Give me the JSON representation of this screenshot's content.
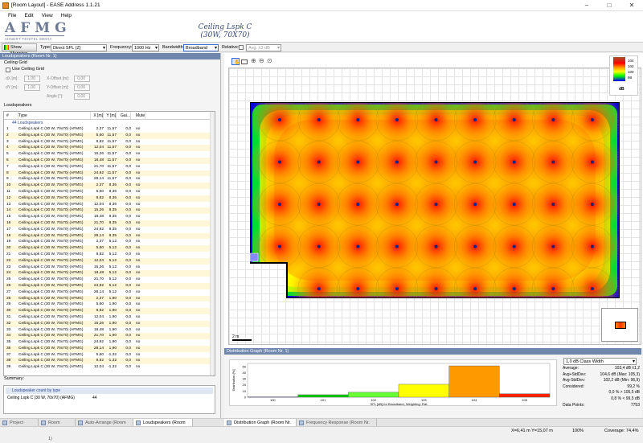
{
  "window": {
    "title": "[Room Layout] - EASE Address 1.1.21"
  },
  "menu": [
    "File",
    "Edit",
    "View",
    "Help"
  ],
  "logo": {
    "text": "AFMG",
    "subtitle": "AHNERT FEISTEL MEDIA GROUP"
  },
  "design": {
    "line1": "Ceiling Lspk C",
    "line2": "(30W, 70X70)"
  },
  "toolbar": {
    "show_mapping": "Show Mapping",
    "type_label": "Type:",
    "type_value": "Direct SPL (Z)",
    "frequency_label": "Frequency:",
    "frequency_value": "1000 Hz",
    "bandwidth_label": "Bandwidth:",
    "bandwidth_value": "Broadband",
    "relative_label": "Relative:",
    "relative_value": "Avg. ±3 dB"
  },
  "left_panel": {
    "title": "Loudspeakers (Room Nr. 1)",
    "ceiling_grid_header": "Ceiling Grid",
    "use_ceiling_grid": "Use Ceiling Grid",
    "dx_label": "dX [m]:",
    "dx_value": "1,00",
    "dy_label": "dY [m]:",
    "dy_value": "1,00",
    "xoff_label": "X-Offset [m]:",
    "xoff_value": "0,00",
    "yoff_label": "Y-Offset [m]:",
    "yoff_value": "0,00",
    "angle_label": "Angle [°]:",
    "angle_value": "0,00",
    "loudspeakers_header": "Loudspeakers",
    "columns": [
      "#",
      "Type",
      "X [m]",
      "Y [m]",
      "Gai...",
      "Mute"
    ],
    "group_label": "44 Loudspeakers",
    "rows": [
      [
        "1",
        "Ceiling Lspk C (30 W, 70x70) (AFMG)",
        "2,37",
        "11,57",
        "0,0",
        "no"
      ],
      [
        "2",
        "Ceiling Lspk C (30 W, 70x70) (AFMG)",
        "5,60",
        "11,57",
        "0,0",
        "no"
      ],
      [
        "3",
        "Ceiling Lspk C (30 W, 70x70) (AFMG)",
        "8,82",
        "11,57",
        "0,0",
        "no"
      ],
      [
        "4",
        "Ceiling Lspk C (30 W, 70x70) (AFMG)",
        "12,04",
        "11,57",
        "0,0",
        "no"
      ],
      [
        "5",
        "Ceiling Lspk C (30 W, 70x70) (AFMG)",
        "15,26",
        "11,57",
        "0,0",
        "no"
      ],
      [
        "6",
        "Ceiling Lspk C (30 W, 70x70) (AFMG)",
        "18,48",
        "11,57",
        "0,0",
        "no"
      ],
      [
        "7",
        "Ceiling Lspk C (30 W, 70x70) (AFMG)",
        "21,70",
        "11,57",
        "0,0",
        "no"
      ],
      [
        "8",
        "Ceiling Lspk C (30 W, 70x70) (AFMG)",
        "24,92",
        "11,57",
        "0,0",
        "no"
      ],
      [
        "9",
        "Ceiling Lspk C (30 W, 70x70) (AFMG)",
        "28,14",
        "11,57",
        "0,0",
        "no"
      ],
      [
        "10",
        "Ceiling Lspk C (30 W, 70x70) (AFMG)",
        "2,37",
        "8,35",
        "0,0",
        "no"
      ],
      [
        "11",
        "Ceiling Lspk C (30 W, 70x70) (AFMG)",
        "5,60",
        "8,35",
        "0,0",
        "no"
      ],
      [
        "12",
        "Ceiling Lspk C (30 W, 70x70) (AFMG)",
        "8,82",
        "8,35",
        "0,0",
        "no"
      ],
      [
        "13",
        "Ceiling Lspk C (30 W, 70x70) (AFMG)",
        "12,04",
        "8,35",
        "0,0",
        "no"
      ],
      [
        "14",
        "Ceiling Lspk C (30 W, 70x70) (AFMG)",
        "15,26",
        "8,35",
        "0,0",
        "no"
      ],
      [
        "15",
        "Ceiling Lspk C (30 W, 70x70) (AFMG)",
        "18,48",
        "8,35",
        "0,0",
        "no"
      ],
      [
        "16",
        "Ceiling Lspk C (30 W, 70x70) (AFMG)",
        "21,70",
        "8,35",
        "0,0",
        "no"
      ],
      [
        "17",
        "Ceiling Lspk C (30 W, 70x70) (AFMG)",
        "24,92",
        "8,35",
        "0,0",
        "no"
      ],
      [
        "18",
        "Ceiling Lspk C (30 W, 70x70) (AFMG)",
        "28,14",
        "8,35",
        "0,0",
        "no"
      ],
      [
        "19",
        "Ceiling Lspk C (30 W, 70x70) (AFMG)",
        "2,37",
        "5,12",
        "0,0",
        "no"
      ],
      [
        "20",
        "Ceiling Lspk C (30 W, 70x70) (AFMG)",
        "5,60",
        "5,12",
        "0,0",
        "no"
      ],
      [
        "21",
        "Ceiling Lspk C (30 W, 70x70) (AFMG)",
        "8,82",
        "5,12",
        "0,0",
        "no"
      ],
      [
        "22",
        "Ceiling Lspk C (30 W, 70x70) (AFMG)",
        "12,04",
        "5,12",
        "0,0",
        "no"
      ],
      [
        "23",
        "Ceiling Lspk C (30 W, 70x70) (AFMG)",
        "15,26",
        "5,12",
        "0,0",
        "no"
      ],
      [
        "24",
        "Ceiling Lspk C (30 W, 70x70) (AFMG)",
        "18,48",
        "5,12",
        "0,0",
        "no"
      ],
      [
        "25",
        "Ceiling Lspk C (30 W, 70x70) (AFMG)",
        "21,70",
        "5,12",
        "0,0",
        "no"
      ],
      [
        "26",
        "Ceiling Lspk C (30 W, 70x70) (AFMG)",
        "24,92",
        "5,12",
        "0,0",
        "no"
      ],
      [
        "27",
        "Ceiling Lspk C (30 W, 70x70) (AFMG)",
        "28,14",
        "5,12",
        "0,0",
        "no"
      ],
      [
        "28",
        "Ceiling Lspk C (30 W, 70x70) (AFMG)",
        "2,37",
        "1,90",
        "0,0",
        "no"
      ],
      [
        "29",
        "Ceiling Lspk C (30 W, 70x70) (AFMG)",
        "5,60",
        "1,90",
        "0,0",
        "no"
      ],
      [
        "30",
        "Ceiling Lspk C (30 W, 70x70) (AFMG)",
        "8,82",
        "1,90",
        "0,0",
        "no"
      ],
      [
        "31",
        "Ceiling Lspk C (30 W, 70x70) (AFMG)",
        "12,04",
        "1,90",
        "0,0",
        "no"
      ],
      [
        "32",
        "Ceiling Lspk C (30 W, 70x70) (AFMG)",
        "15,26",
        "1,90",
        "0,0",
        "no"
      ],
      [
        "33",
        "Ceiling Lspk C (30 W, 70x70) (AFMG)",
        "18,48",
        "1,90",
        "0,0",
        "no"
      ],
      [
        "34",
        "Ceiling Lspk C (30 W, 70x70) (AFMG)",
        "21,70",
        "1,90",
        "0,0",
        "no"
      ],
      [
        "35",
        "Ceiling Lspk C (30 W, 70x70) (AFMG)",
        "24,92",
        "1,90",
        "0,0",
        "no"
      ],
      [
        "36",
        "Ceiling Lspk C (30 W, 70x70) (AFMG)",
        "28,14",
        "1,90",
        "0,0",
        "no"
      ],
      [
        "37",
        "Ceiling Lspk C (30 W, 70x70) (AFMG)",
        "5,60",
        "-1,32",
        "0,0",
        "no"
      ],
      [
        "38",
        "Ceiling Lspk C (30 W, 70x70) (AFMG)",
        "8,82",
        "-1,32",
        "0,0",
        "no"
      ],
      [
        "39",
        "Ceiling Lspk C (30 W, 70x70) (AFMG)",
        "12,04",
        "-1,32",
        "0,0",
        "no"
      ]
    ],
    "summary_label": "Summary:",
    "summary_group": "Loudspeaker count by type",
    "summary_type": "Ceiling Lspk C (30 W, 70x70) (AFMG)",
    "summary_count": "44"
  },
  "map": {
    "legend_ticks": [
      "104",
      "102",
      "100",
      "98"
    ],
    "legend_unit": "dB",
    "scale_label": "2 m",
    "colors": {
      "blue": "#0000ff",
      "green": "#00ff00",
      "yellow": "#ffff00",
      "orange": "#ffa500",
      "red": "#ff0000",
      "dot": "#1a237e"
    }
  },
  "distribution": {
    "title": "Distribution Graph (Room Nr. 1)",
    "class_width": "1,0 dB Class Width",
    "ylabel": "Distribution [%]",
    "xlabel": "SPL [dB] for Broadband, Weighting: Flat",
    "yticks": [
      "50",
      "40",
      "30",
      "20",
      "10",
      "0"
    ],
    "xticks": [
      "100",
      "101",
      "102",
      "103",
      "104",
      "105"
    ],
    "stats": [
      [
        "Average:",
        "103,4 dB ±1,2"
      ],
      [
        "Avg+StdDev:",
        "104,6 dB (Max: 105,3)"
      ],
      [
        "Avg-StdDev:",
        "102,2 dB (Min: 96,9)"
      ],
      [
        "Considered:",
        "99,2 %"
      ],
      [
        "",
        "0,0 % > 105,5 dB"
      ],
      [
        "",
        "0,8 % < 99,5 dB"
      ],
      [
        "Data Points:",
        "7753"
      ]
    ]
  },
  "chart_data": {
    "type": "bar",
    "categories": [
      "100",
      "101",
      "102",
      "103",
      "104",
      "105"
    ],
    "values": [
      0.5,
      4,
      8,
      21,
      51,
      5.5
    ],
    "colors": [
      "#0000cc",
      "#00cc00",
      "#66ff33",
      "#ffff00",
      "#ff9900",
      "#ff2200"
    ],
    "ylim": [
      0,
      55
    ],
    "xlabel": "SPL [dB] for Broadband, Weighting: Flat",
    "ylabel": "Distribution [%]"
  },
  "tabs": {
    "bottom_left": [
      "Project",
      "Room (Room Nr. 1)",
      "Auto-Arrange (Room Nr. 1)",
      "Loudspeakers (Room Nr. 1)"
    ],
    "bottom_right": [
      "Distribution Graph (Room Nr. 1)",
      "Frequency Response (Room Nr. 1)"
    ]
  },
  "status": {
    "coords": "X=6,41 m  Y=15,07 m",
    "zoom": "100%",
    "coverage": "Coverage: 74,4%"
  }
}
